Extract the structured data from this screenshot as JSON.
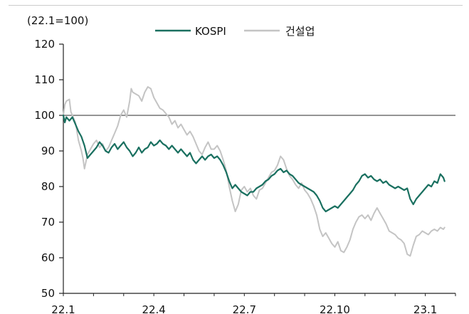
{
  "chart_data": {
    "type": "line",
    "unit_label": "(22.1=100)",
    "title": "",
    "xlabel": "",
    "ylabel": "",
    "x_ticks": [
      "22.1",
      "22.4",
      "22.7",
      "22.10",
      "23.1"
    ],
    "x_range": [
      0,
      13
    ],
    "ylim": [
      50,
      120
    ],
    "y_ticks": [
      50,
      60,
      70,
      80,
      90,
      100,
      110,
      120
    ],
    "reference_line": 100,
    "legend_position": "top-center",
    "colors": {
      "KOSPI": "#1a7060",
      "건설업": "#c4c4c4",
      "axis": "#222222",
      "reference": "#555555"
    },
    "series": [
      {
        "name": "KOSPI",
        "points": [
          [
            0.0,
            100.0
          ],
          [
            0.05,
            98.0
          ],
          [
            0.1,
            99.5
          ],
          [
            0.2,
            98.5
          ],
          [
            0.3,
            99.5
          ],
          [
            0.4,
            97.5
          ],
          [
            0.5,
            95.5
          ],
          [
            0.6,
            94.0
          ],
          [
            0.7,
            91.5
          ],
          [
            0.8,
            88.0
          ],
          [
            0.9,
            89.0
          ],
          [
            1.0,
            90.0
          ],
          [
            1.1,
            91.0
          ],
          [
            1.2,
            92.5
          ],
          [
            1.3,
            91.5
          ],
          [
            1.4,
            90.0
          ],
          [
            1.5,
            89.5
          ],
          [
            1.6,
            91.0
          ],
          [
            1.7,
            92.0
          ],
          [
            1.8,
            90.5
          ],
          [
            1.9,
            91.5
          ],
          [
            2.0,
            92.5
          ],
          [
            2.1,
            91.0
          ],
          [
            2.2,
            90.0
          ],
          [
            2.3,
            88.5
          ],
          [
            2.4,
            89.5
          ],
          [
            2.5,
            91.0
          ],
          [
            2.6,
            89.5
          ],
          [
            2.7,
            90.5
          ],
          [
            2.8,
            91.0
          ],
          [
            2.9,
            92.5
          ],
          [
            3.0,
            91.5
          ],
          [
            3.1,
            92.0
          ],
          [
            3.2,
            93.0
          ],
          [
            3.3,
            92.0
          ],
          [
            3.4,
            91.5
          ],
          [
            3.5,
            90.5
          ],
          [
            3.6,
            91.5
          ],
          [
            3.7,
            90.5
          ],
          [
            3.8,
            89.5
          ],
          [
            3.9,
            90.5
          ],
          [
            4.0,
            89.5
          ],
          [
            4.1,
            88.5
          ],
          [
            4.2,
            89.5
          ],
          [
            4.3,
            87.5
          ],
          [
            4.4,
            86.5
          ],
          [
            4.5,
            87.5
          ],
          [
            4.6,
            88.5
          ],
          [
            4.7,
            87.5
          ],
          [
            4.8,
            88.5
          ],
          [
            4.9,
            89.0
          ],
          [
            5.0,
            88.0
          ],
          [
            5.1,
            88.5
          ],
          [
            5.2,
            87.5
          ],
          [
            5.3,
            86.0
          ],
          [
            5.4,
            84.0
          ],
          [
            5.5,
            81.5
          ],
          [
            5.6,
            79.5
          ],
          [
            5.7,
            80.5
          ],
          [
            5.8,
            79.5
          ],
          [
            5.9,
            78.5
          ],
          [
            6.0,
            78.0
          ],
          [
            6.1,
            77.5
          ],
          [
            6.2,
            78.5
          ],
          [
            6.3,
            78.5
          ],
          [
            6.4,
            79.5
          ],
          [
            6.5,
            80.0
          ],
          [
            6.6,
            80.5
          ],
          [
            6.7,
            81.5
          ],
          [
            6.8,
            82.0
          ],
          [
            6.9,
            83.0
          ],
          [
            7.0,
            83.5
          ],
          [
            7.1,
            84.5
          ],
          [
            7.2,
            85.0
          ],
          [
            7.3,
            84.0
          ],
          [
            7.4,
            84.5
          ],
          [
            7.5,
            83.5
          ],
          [
            7.6,
            83.0
          ],
          [
            7.7,
            82.0
          ],
          [
            7.8,
            81.0
          ],
          [
            7.9,
            80.5
          ],
          [
            8.0,
            80.0
          ],
          [
            8.1,
            79.5
          ],
          [
            8.2,
            79.0
          ],
          [
            8.3,
            78.5
          ],
          [
            8.4,
            77.5
          ],
          [
            8.5,
            76.0
          ],
          [
            8.6,
            74.0
          ],
          [
            8.7,
            73.0
          ],
          [
            8.8,
            73.5
          ],
          [
            8.9,
            74.0
          ],
          [
            9.0,
            74.5
          ],
          [
            9.1,
            74.0
          ],
          [
            9.2,
            75.0
          ],
          [
            9.3,
            76.0
          ],
          [
            9.4,
            77.0
          ],
          [
            9.5,
            78.0
          ],
          [
            9.6,
            79.0
          ],
          [
            9.7,
            80.5
          ],
          [
            9.8,
            81.5
          ],
          [
            9.9,
            83.0
          ],
          [
            10.0,
            83.5
          ],
          [
            10.1,
            82.5
          ],
          [
            10.2,
            83.0
          ],
          [
            10.3,
            82.0
          ],
          [
            10.4,
            81.5
          ],
          [
            10.5,
            82.0
          ],
          [
            10.6,
            81.0
          ],
          [
            10.7,
            81.5
          ],
          [
            10.8,
            80.5
          ],
          [
            10.9,
            80.0
          ],
          [
            11.0,
            79.5
          ],
          [
            11.1,
            80.0
          ],
          [
            11.2,
            79.5
          ],
          [
            11.3,
            79.0
          ],
          [
            11.4,
            79.5
          ],
          [
            11.5,
            76.5
          ],
          [
            11.6,
            75.0
          ],
          [
            11.7,
            76.5
          ],
          [
            11.8,
            77.5
          ],
          [
            11.9,
            78.5
          ],
          [
            12.0,
            79.5
          ],
          [
            12.1,
            80.5
          ],
          [
            12.2,
            80.0
          ],
          [
            12.3,
            81.5
          ],
          [
            12.4,
            81.0
          ],
          [
            12.5,
            83.5
          ],
          [
            12.6,
            82.5
          ],
          [
            12.64,
            81.5
          ]
        ]
      },
      {
        "name": "건설업",
        "points": [
          [
            0.0,
            100.0
          ],
          [
            0.05,
            103.0
          ],
          [
            0.1,
            104.0
          ],
          [
            0.2,
            104.5
          ],
          [
            0.25,
            101.0
          ],
          [
            0.3,
            100.0
          ],
          [
            0.4,
            98.0
          ],
          [
            0.5,
            93.0
          ],
          [
            0.6,
            90.0
          ],
          [
            0.65,
            88.0
          ],
          [
            0.7,
            85.0
          ],
          [
            0.8,
            89.0
          ],
          [
            0.9,
            90.5
          ],
          [
            1.0,
            92.0
          ],
          [
            1.1,
            93.0
          ],
          [
            1.2,
            91.0
          ],
          [
            1.3,
            92.0
          ],
          [
            1.4,
            90.0
          ],
          [
            1.5,
            91.0
          ],
          [
            1.6,
            93.0
          ],
          [
            1.7,
            95.0
          ],
          [
            1.8,
            97.0
          ],
          [
            1.9,
            100.0
          ],
          [
            2.0,
            101.5
          ],
          [
            2.05,
            100.5
          ],
          [
            2.1,
            99.5
          ],
          [
            2.2,
            104.0
          ],
          [
            2.25,
            107.5
          ],
          [
            2.3,
            106.5
          ],
          [
            2.4,
            106.0
          ],
          [
            2.5,
            105.5
          ],
          [
            2.6,
            104.0
          ],
          [
            2.7,
            106.5
          ],
          [
            2.8,
            108.0
          ],
          [
            2.9,
            107.5
          ],
          [
            3.0,
            105.0
          ],
          [
            3.1,
            103.5
          ],
          [
            3.2,
            102.0
          ],
          [
            3.3,
            101.5
          ],
          [
            3.4,
            100.5
          ],
          [
            3.5,
            99.5
          ],
          [
            3.6,
            97.5
          ],
          [
            3.7,
            98.5
          ],
          [
            3.8,
            96.5
          ],
          [
            3.9,
            97.5
          ],
          [
            4.0,
            96.0
          ],
          [
            4.1,
            94.5
          ],
          [
            4.2,
            95.5
          ],
          [
            4.3,
            94.0
          ],
          [
            4.4,
            92.0
          ],
          [
            4.5,
            90.0
          ],
          [
            4.6,
            89.0
          ],
          [
            4.7,
            91.0
          ],
          [
            4.8,
            92.5
          ],
          [
            4.9,
            90.5
          ],
          [
            5.0,
            90.5
          ],
          [
            5.1,
            91.5
          ],
          [
            5.2,
            90.0
          ],
          [
            5.3,
            87.5
          ],
          [
            5.4,
            84.5
          ],
          [
            5.5,
            80.0
          ],
          [
            5.6,
            76.0
          ],
          [
            5.7,
            73.0
          ],
          [
            5.8,
            75.0
          ],
          [
            5.9,
            79.0
          ],
          [
            6.0,
            80.0
          ],
          [
            6.1,
            78.5
          ],
          [
            6.2,
            79.5
          ],
          [
            6.3,
            77.5
          ],
          [
            6.4,
            76.5
          ],
          [
            6.5,
            79.0
          ],
          [
            6.6,
            79.5
          ],
          [
            6.7,
            81.0
          ],
          [
            6.8,
            82.5
          ],
          [
            6.9,
            84.0
          ],
          [
            7.0,
            84.5
          ],
          [
            7.1,
            86.0
          ],
          [
            7.2,
            88.5
          ],
          [
            7.3,
            87.5
          ],
          [
            7.4,
            85.0
          ],
          [
            7.5,
            83.0
          ],
          [
            7.6,
            82.0
          ],
          [
            7.7,
            80.5
          ],
          [
            7.8,
            79.5
          ],
          [
            7.9,
            81.0
          ],
          [
            8.0,
            79.0
          ],
          [
            8.1,
            78.0
          ],
          [
            8.2,
            76.5
          ],
          [
            8.3,
            74.5
          ],
          [
            8.4,
            72.0
          ],
          [
            8.5,
            68.0
          ],
          [
            8.6,
            66.0
          ],
          [
            8.7,
            67.0
          ],
          [
            8.8,
            65.5
          ],
          [
            8.9,
            64.0
          ],
          [
            9.0,
            63.0
          ],
          [
            9.1,
            64.5
          ],
          [
            9.2,
            62.0
          ],
          [
            9.3,
            61.5
          ],
          [
            9.4,
            63.0
          ],
          [
            9.5,
            65.0
          ],
          [
            9.6,
            68.0
          ],
          [
            9.7,
            70.0
          ],
          [
            9.8,
            71.5
          ],
          [
            9.9,
            72.0
          ],
          [
            10.0,
            71.0
          ],
          [
            10.1,
            72.0
          ],
          [
            10.2,
            70.5
          ],
          [
            10.3,
            72.5
          ],
          [
            10.4,
            74.0
          ],
          [
            10.5,
            72.5
          ],
          [
            10.6,
            71.0
          ],
          [
            10.7,
            69.5
          ],
          [
            10.8,
            67.5
          ],
          [
            10.9,
            67.0
          ],
          [
            11.0,
            66.5
          ],
          [
            11.1,
            65.5
          ],
          [
            11.2,
            65.0
          ],
          [
            11.3,
            64.0
          ],
          [
            11.4,
            61.0
          ],
          [
            11.5,
            60.5
          ],
          [
            11.6,
            63.5
          ],
          [
            11.7,
            66.0
          ],
          [
            11.8,
            66.5
          ],
          [
            11.9,
            67.5
          ],
          [
            12.0,
            67.0
          ],
          [
            12.1,
            66.5
          ],
          [
            12.2,
            67.5
          ],
          [
            12.3,
            68.0
          ],
          [
            12.4,
            67.5
          ],
          [
            12.5,
            68.5
          ],
          [
            12.6,
            68.0
          ],
          [
            12.64,
            68.5
          ]
        ]
      }
    ]
  }
}
